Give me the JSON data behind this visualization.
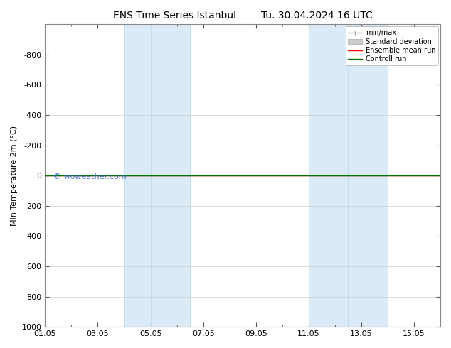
{
  "title_left": "ENS Time Series Istanbul",
  "title_right": "Tu. 30.04.2024 16 UTC",
  "ylabel": "Min Temperature 2m (°C)",
  "ylim_bottom": -1000,
  "ylim_top": 1000,
  "yticks": [
    -800,
    -600,
    -400,
    -200,
    0,
    200,
    400,
    600,
    800,
    1000
  ],
  "xtick_labels": [
    "01.05",
    "03.05",
    "05.05",
    "07.05",
    "09.05",
    "11.05",
    "13.05",
    "15.05"
  ],
  "xtick_positions": [
    0,
    2,
    4,
    6,
    8,
    10,
    12,
    14
  ],
  "xlim": [
    0,
    15
  ],
  "blue_bands": [
    [
      3.0,
      4.0
    ],
    [
      4.0,
      5.5
    ],
    [
      10.0,
      11.5
    ],
    [
      11.5,
      13.0
    ]
  ],
  "band_color": "#daeaf7",
  "band_edge_color": "#c5ddf0",
  "green_line_y": 0,
  "red_line_y": 0,
  "watermark": "© woweather.com",
  "watermark_color": "#3366cc",
  "background_color": "#ffffff",
  "plot_bg_color": "#ffffff",
  "legend_labels": [
    "min/max",
    "Standard deviation",
    "Ensemble mean run",
    "Controll run"
  ],
  "legend_colors_line": [
    "#aaaaaa",
    "#cccccc",
    "#ff0000",
    "#007700"
  ],
  "grid_color": "#cccccc",
  "title_fontsize": 10,
  "axis_fontsize": 8,
  "tick_fontsize": 8,
  "legend_fontsize": 7,
  "watermark_fontsize": 8
}
